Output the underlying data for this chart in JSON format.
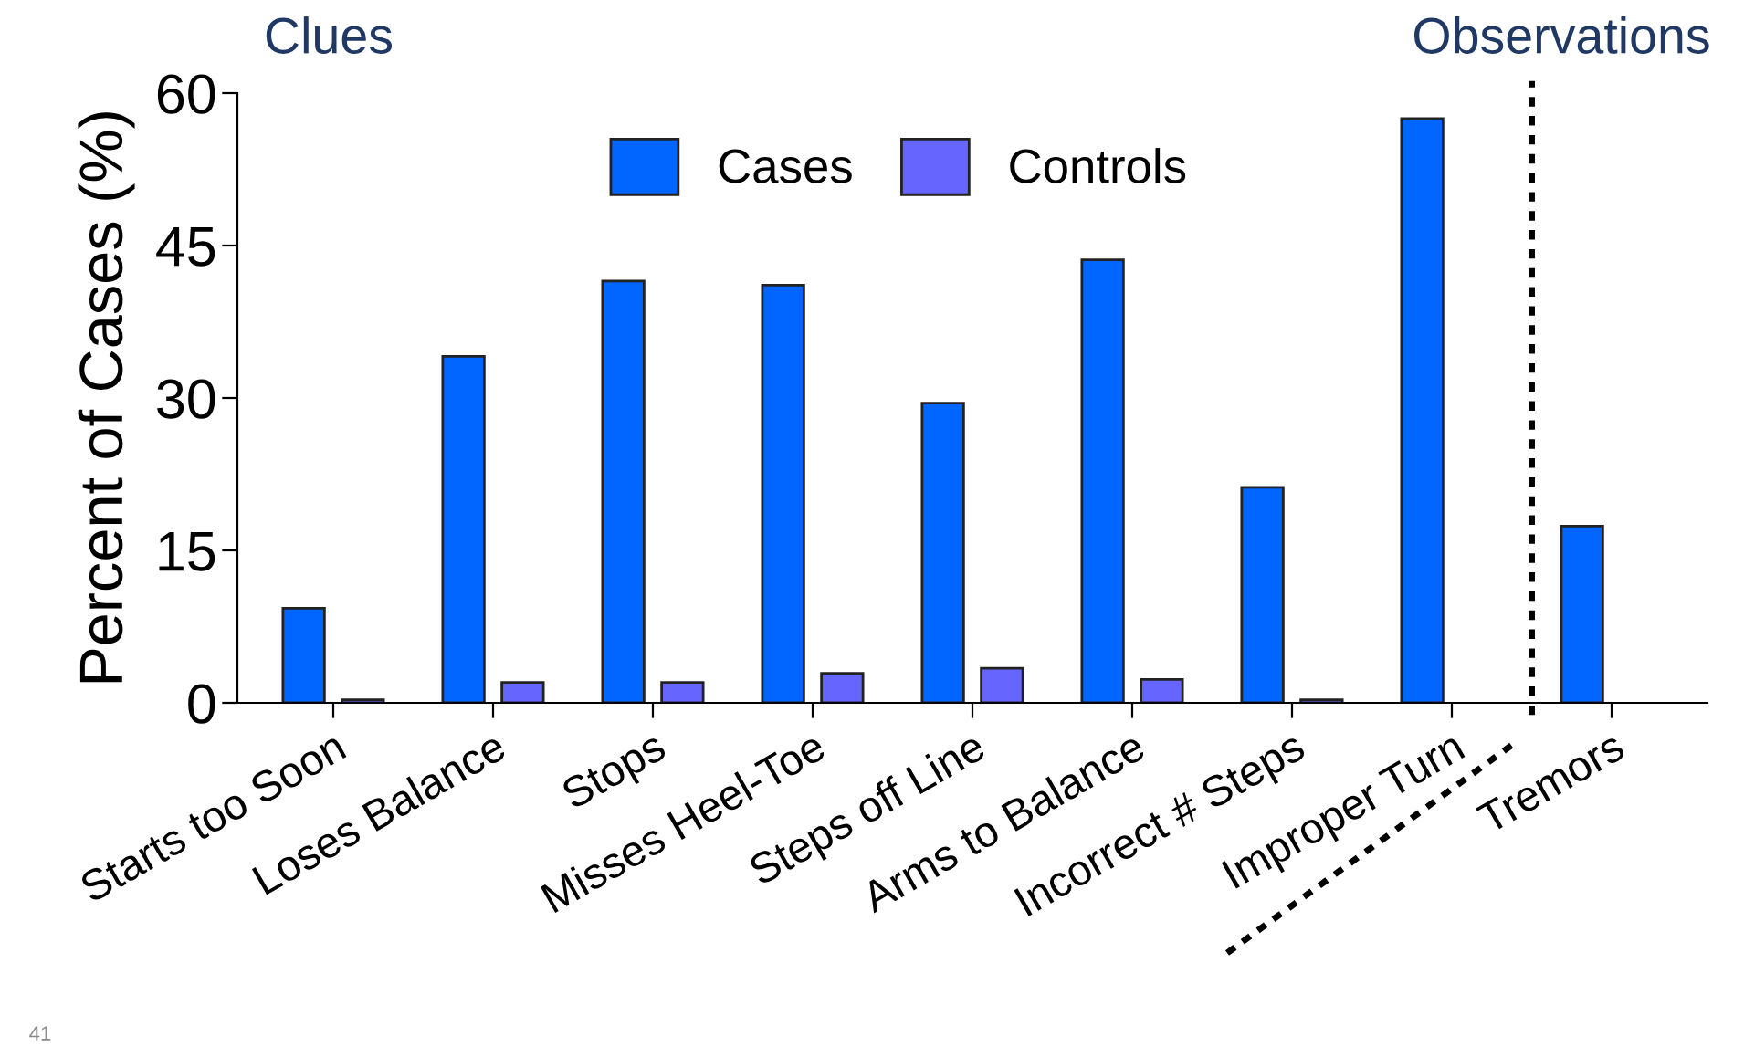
{
  "chart_data": {
    "type": "bar",
    "ylabel": "Percent of Cases (%)",
    "annotations": [
      "Clues",
      "Observations",
      "41"
    ],
    "categories": [
      "Starts too Soon",
      "Loses Balance",
      "Stops",
      "Misses Heel-Toe",
      "Steps off Line",
      "Arms to Balance",
      "Incorrect # Steps",
      "Improper Turn",
      "Tremors"
    ],
    "series": [
      {
        "name": "Cases",
        "color": "#0066ff",
        "values": [
          9.3,
          34.1,
          41.5,
          41.1,
          29.5,
          43.6,
          21.2,
          57.5,
          17.4
        ]
      },
      {
        "name": "Controls",
        "color": "#6666ff",
        "values": [
          0.3,
          2.0,
          2.0,
          2.9,
          3.4,
          2.3,
          0.3,
          null,
          null
        ]
      }
    ],
    "ylim": [
      0,
      60
    ],
    "yticks": [
      0,
      15,
      30,
      45,
      60
    ],
    "grid": false,
    "legend": "top"
  }
}
